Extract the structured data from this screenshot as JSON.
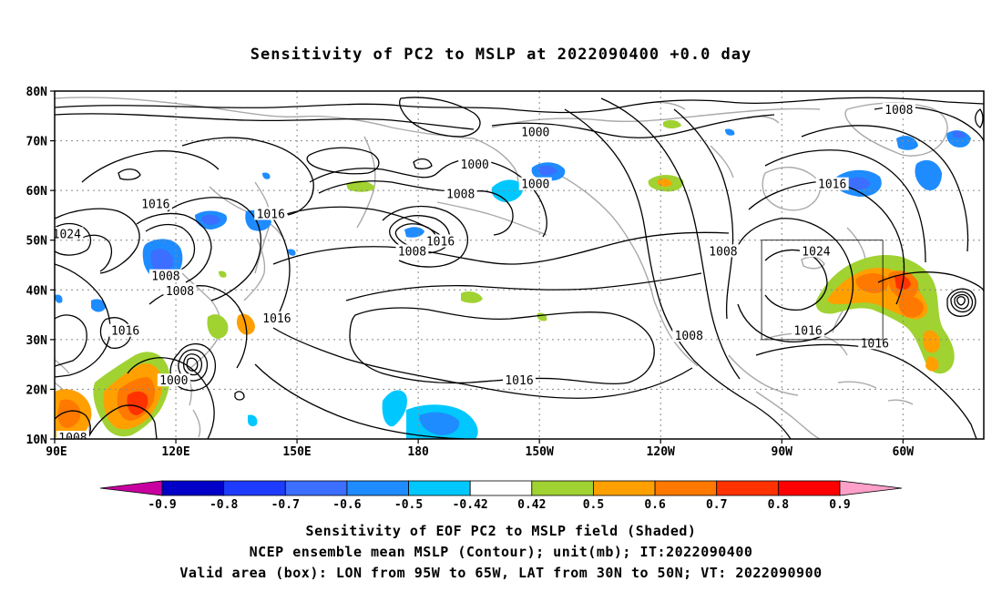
{
  "title": "Sensitivity of PC2 to MSLP at 2022090400 +0.0 day",
  "map": {
    "lat_labels": [
      "80N",
      "70N",
      "60N",
      "50N",
      "40N",
      "30N",
      "20N",
      "10N"
    ],
    "lon_labels": [
      "90E",
      "120E",
      "150E",
      "180",
      "150W",
      "120W",
      "90W",
      "60W"
    ],
    "contour_labels": [
      {
        "text": "1000",
        "lon": -151,
        "lat": 71.5
      },
      {
        "text": "1000",
        "lon": -166,
        "lat": 65
      },
      {
        "text": "1000",
        "lon": -151,
        "lat": 61
      },
      {
        "text": "1008",
        "lon": -169.5,
        "lat": 59
      },
      {
        "text": "1008",
        "lon": -61,
        "lat": 76
      },
      {
        "text": "1016",
        "lon": 115,
        "lat": 57
      },
      {
        "text": "1016",
        "lon": 143.5,
        "lat": 55
      },
      {
        "text": "1016",
        "lon": -77.5,
        "lat": 61
      },
      {
        "text": "1024",
        "lon": 93,
        "lat": 51
      },
      {
        "text": "1016",
        "lon": -174.5,
        "lat": 49.5
      },
      {
        "text": "1008",
        "lon": -181.5,
        "lat": 47.5
      },
      {
        "text": "1008",
        "lon": -104.5,
        "lat": 47.5
      },
      {
        "text": "1024",
        "lon": -81.5,
        "lat": 47.5
      },
      {
        "text": "1008",
        "lon": 117.5,
        "lat": 42.5
      },
      {
        "text": "1008",
        "lon": 121,
        "lat": 39.5
      },
      {
        "text": "1016",
        "lon": 145,
        "lat": 34
      },
      {
        "text": "1016",
        "lon": 107.5,
        "lat": 31.5
      },
      {
        "text": "1016",
        "lon": -83.5,
        "lat": 31.5
      },
      {
        "text": "1016",
        "lon": -67,
        "lat": 29
      },
      {
        "text": "1008",
        "lon": -113,
        "lat": 30.5
      },
      {
        "text": "1000",
        "lon": 119.5,
        "lat": 21.5
      },
      {
        "text": "1016",
        "lon": -155,
        "lat": 21.5
      },
      {
        "text": "1008",
        "lon": 94.5,
        "lat": 10
      }
    ],
    "valid_box": {
      "lon_min": -95,
      "lon_max": -65,
      "lat_min": 30,
      "lat_max": 50
    }
  },
  "colorbar": {
    "labels": [
      "-0.9",
      "-0.8",
      "-0.7",
      "-0.6",
      "-0.5",
      "-0.42",
      "0.42",
      "0.5",
      "0.6",
      "0.7",
      "0.8",
      "0.9"
    ],
    "colors": [
      "#c8009f",
      "#0000c8",
      "#1e3cff",
      "#3c6eff",
      "#1e8cff",
      "#00c8ff",
      "#ffffff",
      "#a0d232",
      "#ffa000",
      "#ff7800",
      "#ff3200",
      "#ff0000",
      "#ffa0c8"
    ]
  },
  "footer": {
    "line1": "Sensitivity of EOF PC2 to MSLP field (Shaded)",
    "line2": "NCEP ensemble mean MSLP (Contour); unit(mb); IT:2022090400",
    "line3": "Valid area (box): LON from 95W to 65W, LAT from 30N to 50N; VT: 2022090900"
  }
}
